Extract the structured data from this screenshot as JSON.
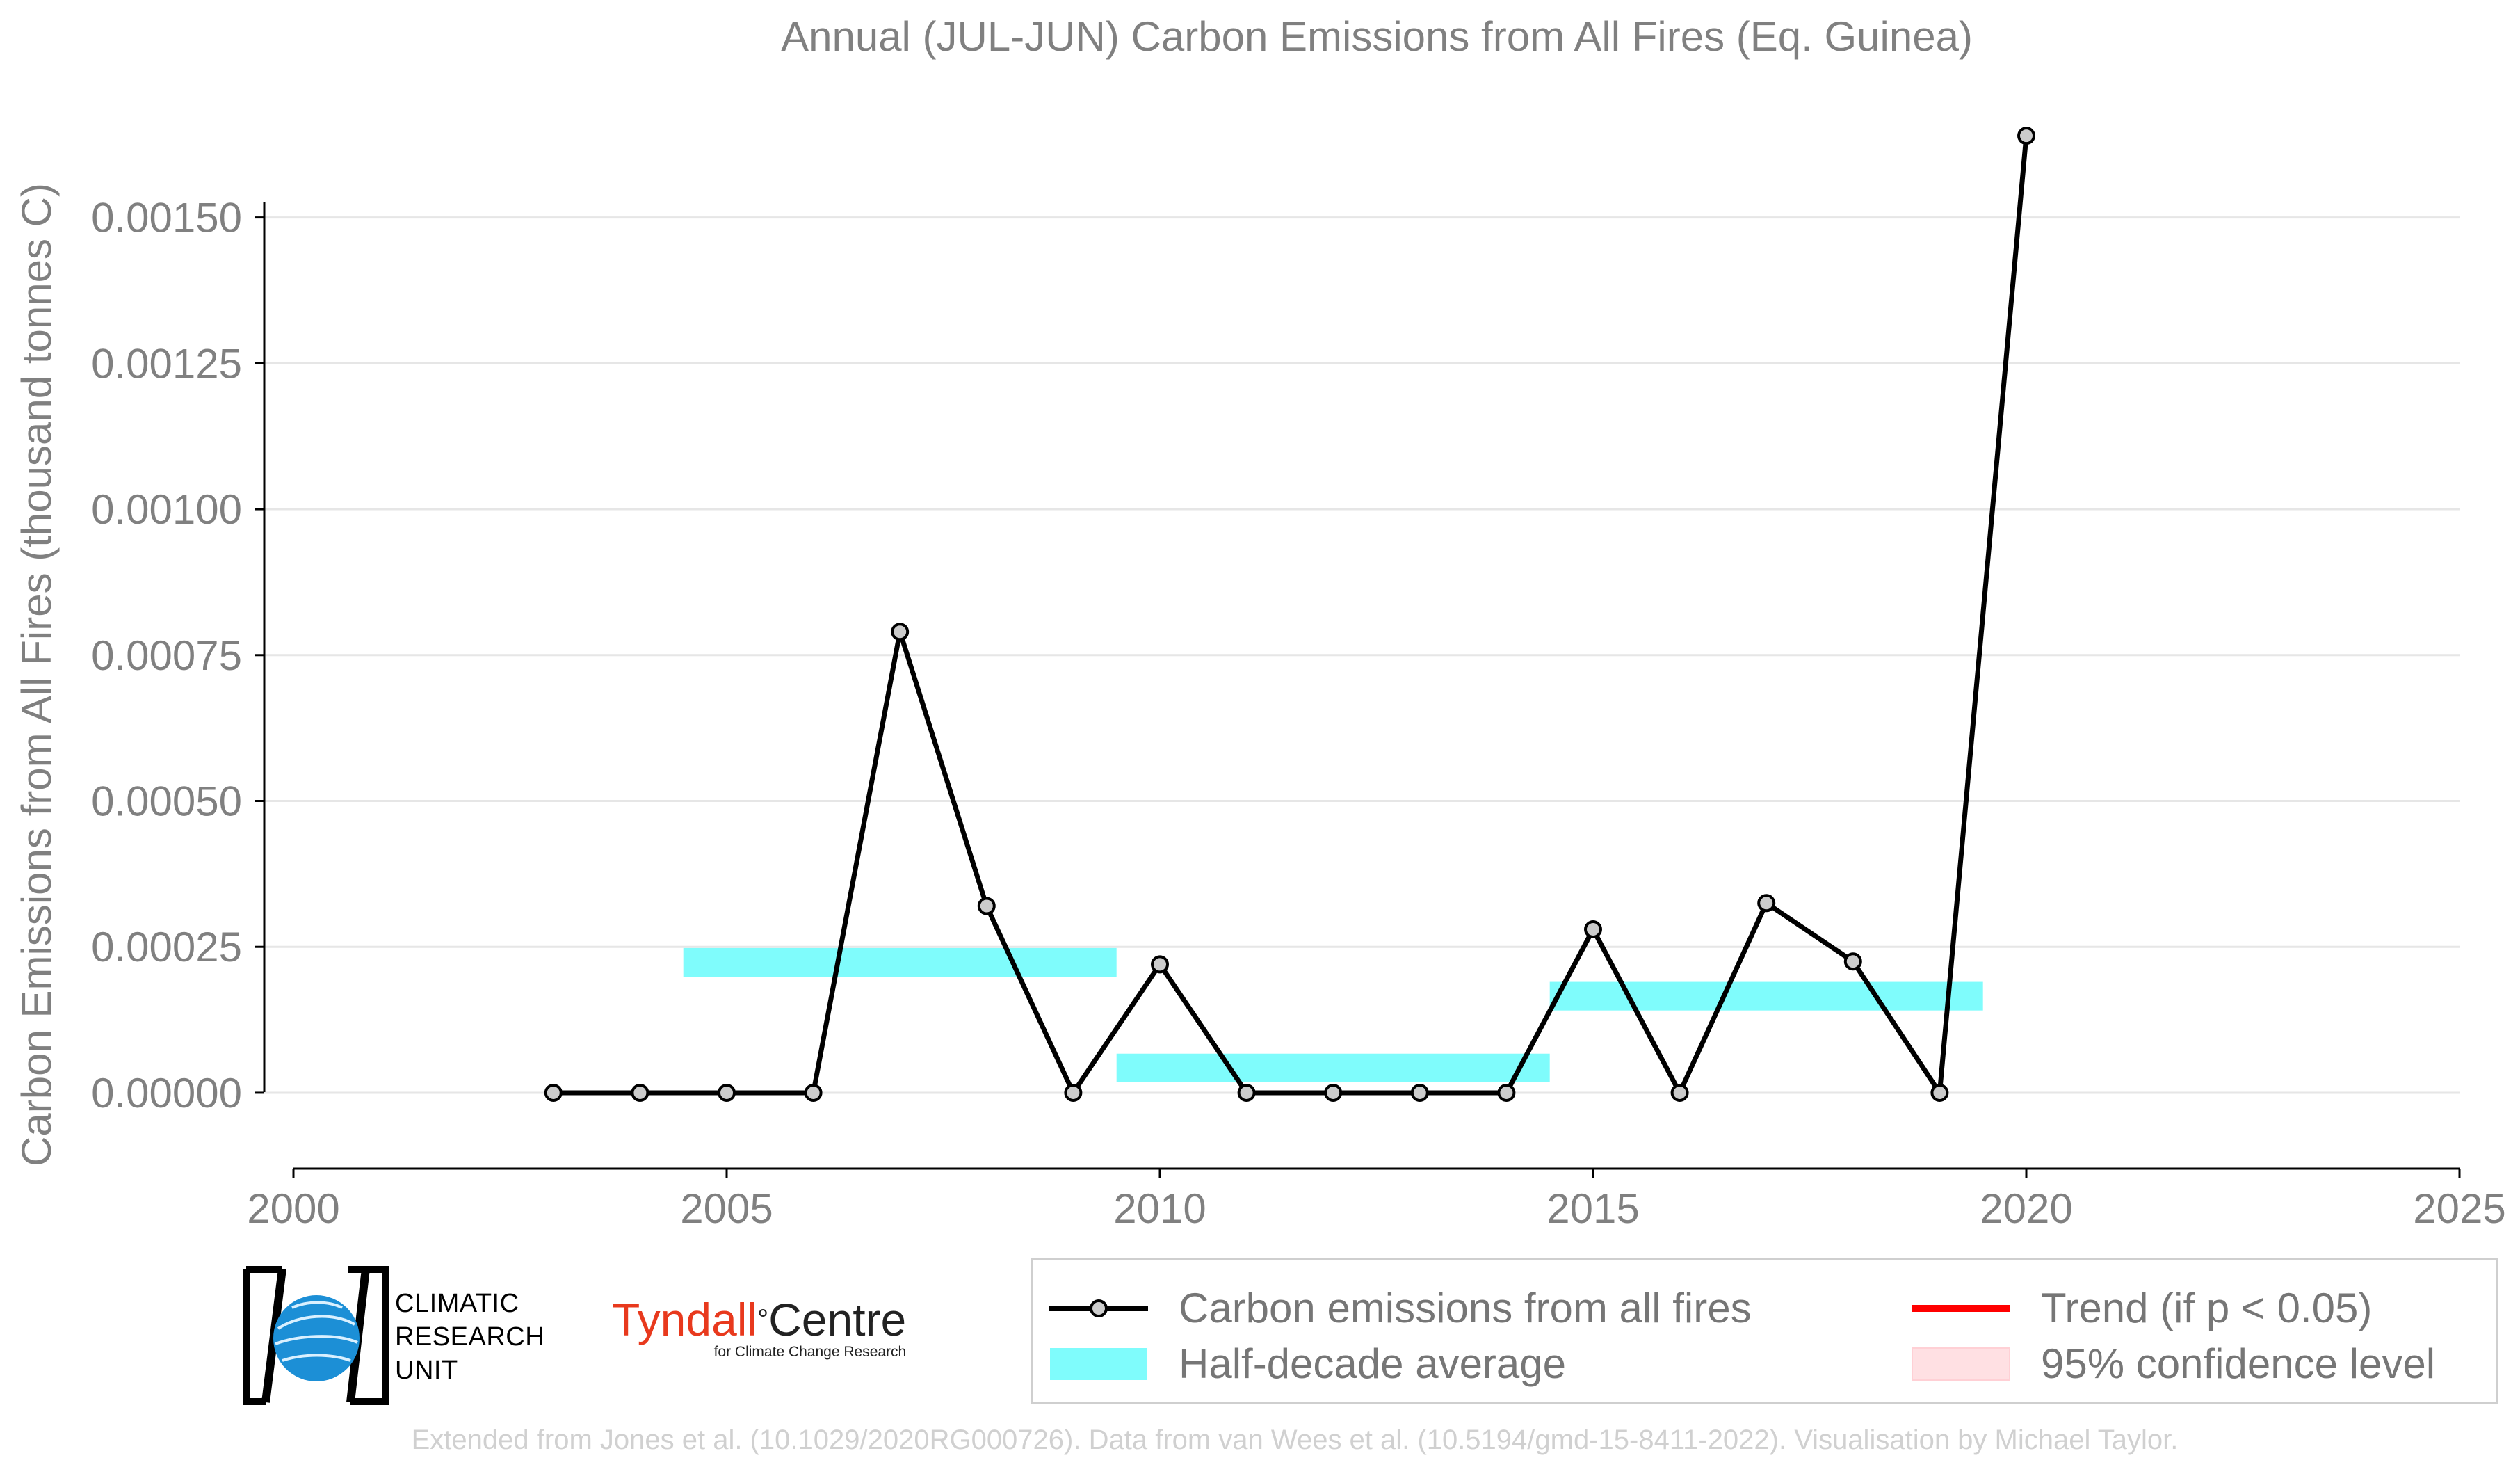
{
  "chart_data": {
    "type": "line",
    "title": "Annual (JUL-JUN) Carbon Emissions from All Fires (Eq. Guinea)",
    "ylabel": "Carbon Emissions from All Fires (thousand tonnes C)",
    "xlabel": "",
    "xlim": [
      2000,
      2025
    ],
    "ylim": [
      -0.00013,
      0.00167
    ],
    "xticks": [
      "2000",
      "2005",
      "2010",
      "2015",
      "2020",
      "2025"
    ],
    "xtick_values": [
      2000,
      2005,
      2010,
      2015,
      2020,
      2025
    ],
    "yticks": [
      "0.00000",
      "0.00025",
      "0.00050",
      "0.00075",
      "0.00100",
      "0.00125",
      "0.00150"
    ],
    "ytick_values": [
      0,
      0.00025,
      0.0005,
      0.00075,
      0.001,
      0.00125,
      0.0015
    ],
    "grid": "horizontal",
    "series": [
      {
        "name": "Carbon emissions from all fires",
        "color": "#000000",
        "marker_color": "#cccccc",
        "x": [
          2003,
          2004,
          2005,
          2006,
          2007,
          2008,
          2009,
          2010,
          2011,
          2012,
          2013,
          2014,
          2015,
          2016,
          2017,
          2018,
          2019,
          2020
        ],
        "y": [
          0,
          0,
          0,
          0,
          0.00079,
          0.00032,
          0,
          0.00022,
          0,
          0,
          0,
          0,
          0.00028,
          0,
          0.000325,
          0.000225,
          0,
          0.00164
        ]
      }
    ],
    "half_decade_average": {
      "name": "Half-decade average",
      "color": "#7ffcfc",
      "bands": [
        {
          "x0": 2004.5,
          "x1": 2009.5,
          "y0": 0.000199,
          "y1": 0.000248
        },
        {
          "x0": 2009.5,
          "x1": 2014.5,
          "y0": 1.8e-05,
          "y1": 6.7e-05
        },
        {
          "x0": 2014.5,
          "x1": 2019.5,
          "y0": 0.000141,
          "y1": 0.00019
        }
      ]
    }
  },
  "legend": {
    "placement": "bottom-right",
    "items": [
      {
        "label": "Carbon emissions from all fires",
        "kind": "line-marker",
        "color": "#000000"
      },
      {
        "label": "Trend (if p < 0.05)",
        "kind": "line",
        "color": "#ff0000"
      },
      {
        "label": "Half-decade average",
        "kind": "band",
        "color": "#7ffcfc"
      },
      {
        "label": "95% confidence level",
        "kind": "band",
        "color": "#ffe0e3"
      }
    ]
  },
  "logos": {
    "cru_lines": [
      "CLIMATIC",
      "RESEARCH",
      "UNIT"
    ],
    "tyndall_red": "Tyndall",
    "tyndall_degree": "°",
    "tyndall_black": "Centre",
    "tyndall_sub": "for Climate Change Research"
  },
  "footer": "Extended from Jones et al. (10.1029/2020RG000726). Data from van Wees et al. (10.5194/gmd-15-8411-2022). Visualisation by Michael Taylor."
}
